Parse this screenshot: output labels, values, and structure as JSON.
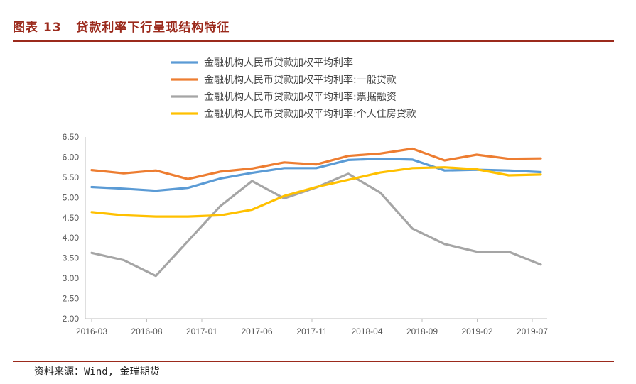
{
  "figure": {
    "label": "图表 13",
    "title": "贷款利率下行呈现结构特征",
    "source": "资料来源：Wind, 金瑞期货"
  },
  "chart_data": {
    "type": "line",
    "title": "",
    "xlabel": "",
    "ylabel": "",
    "x": [
      "2016-03",
      "2016-06",
      "2016-09",
      "2016-12",
      "2017-03",
      "2017-06",
      "2017-09",
      "2017-12",
      "2018-03",
      "2018-06",
      "2018-09",
      "2018-12",
      "2019-03",
      "2019-06",
      "2019-09"
    ],
    "x_tick_labels": [
      "2016-03",
      "2016-08",
      "2017-01",
      "2017-06",
      "2017-11",
      "2018-04",
      "2018-09",
      "2019-02",
      "2019-07"
    ],
    "ylim": [
      2.0,
      6.5
    ],
    "y_ticks": [
      "2.00",
      "2.50",
      "3.00",
      "3.50",
      "4.00",
      "4.50",
      "5.00",
      "5.50",
      "6.00",
      "6.50"
    ],
    "grid": false,
    "legend_position": "top",
    "series": [
      {
        "name": "金融机构人民币贷款加权平均利率",
        "color": "#5b9bd5",
        "values": [
          5.26,
          5.22,
          5.17,
          5.24,
          5.47,
          5.61,
          5.73,
          5.73,
          5.93,
          5.96,
          5.94,
          5.67,
          5.69,
          5.67,
          5.63
        ]
      },
      {
        "name": "金融机构人民币贷款加权平均利率:一般贷款",
        "color": "#ed7d31",
        "values": [
          5.68,
          5.6,
          5.67,
          5.46,
          5.64,
          5.72,
          5.87,
          5.82,
          6.03,
          6.09,
          6.21,
          5.92,
          6.06,
          5.96,
          5.97
        ]
      },
      {
        "name": "金融机构人民币贷款加权平均利率:票据融资",
        "color": "#a5a5a5",
        "values": [
          3.63,
          3.45,
          3.06,
          3.92,
          4.78,
          5.41,
          4.98,
          5.25,
          5.59,
          5.12,
          4.23,
          3.85,
          3.66,
          3.66,
          3.34
        ]
      },
      {
        "name": "金融机构人民币贷款加权平均利率:个人住房贷款",
        "color": "#ffc000",
        "values": [
          4.64,
          4.56,
          4.53,
          4.53,
          4.56,
          4.7,
          5.04,
          5.26,
          5.44,
          5.62,
          5.73,
          5.75,
          5.7,
          5.55,
          5.57
        ]
      }
    ]
  }
}
